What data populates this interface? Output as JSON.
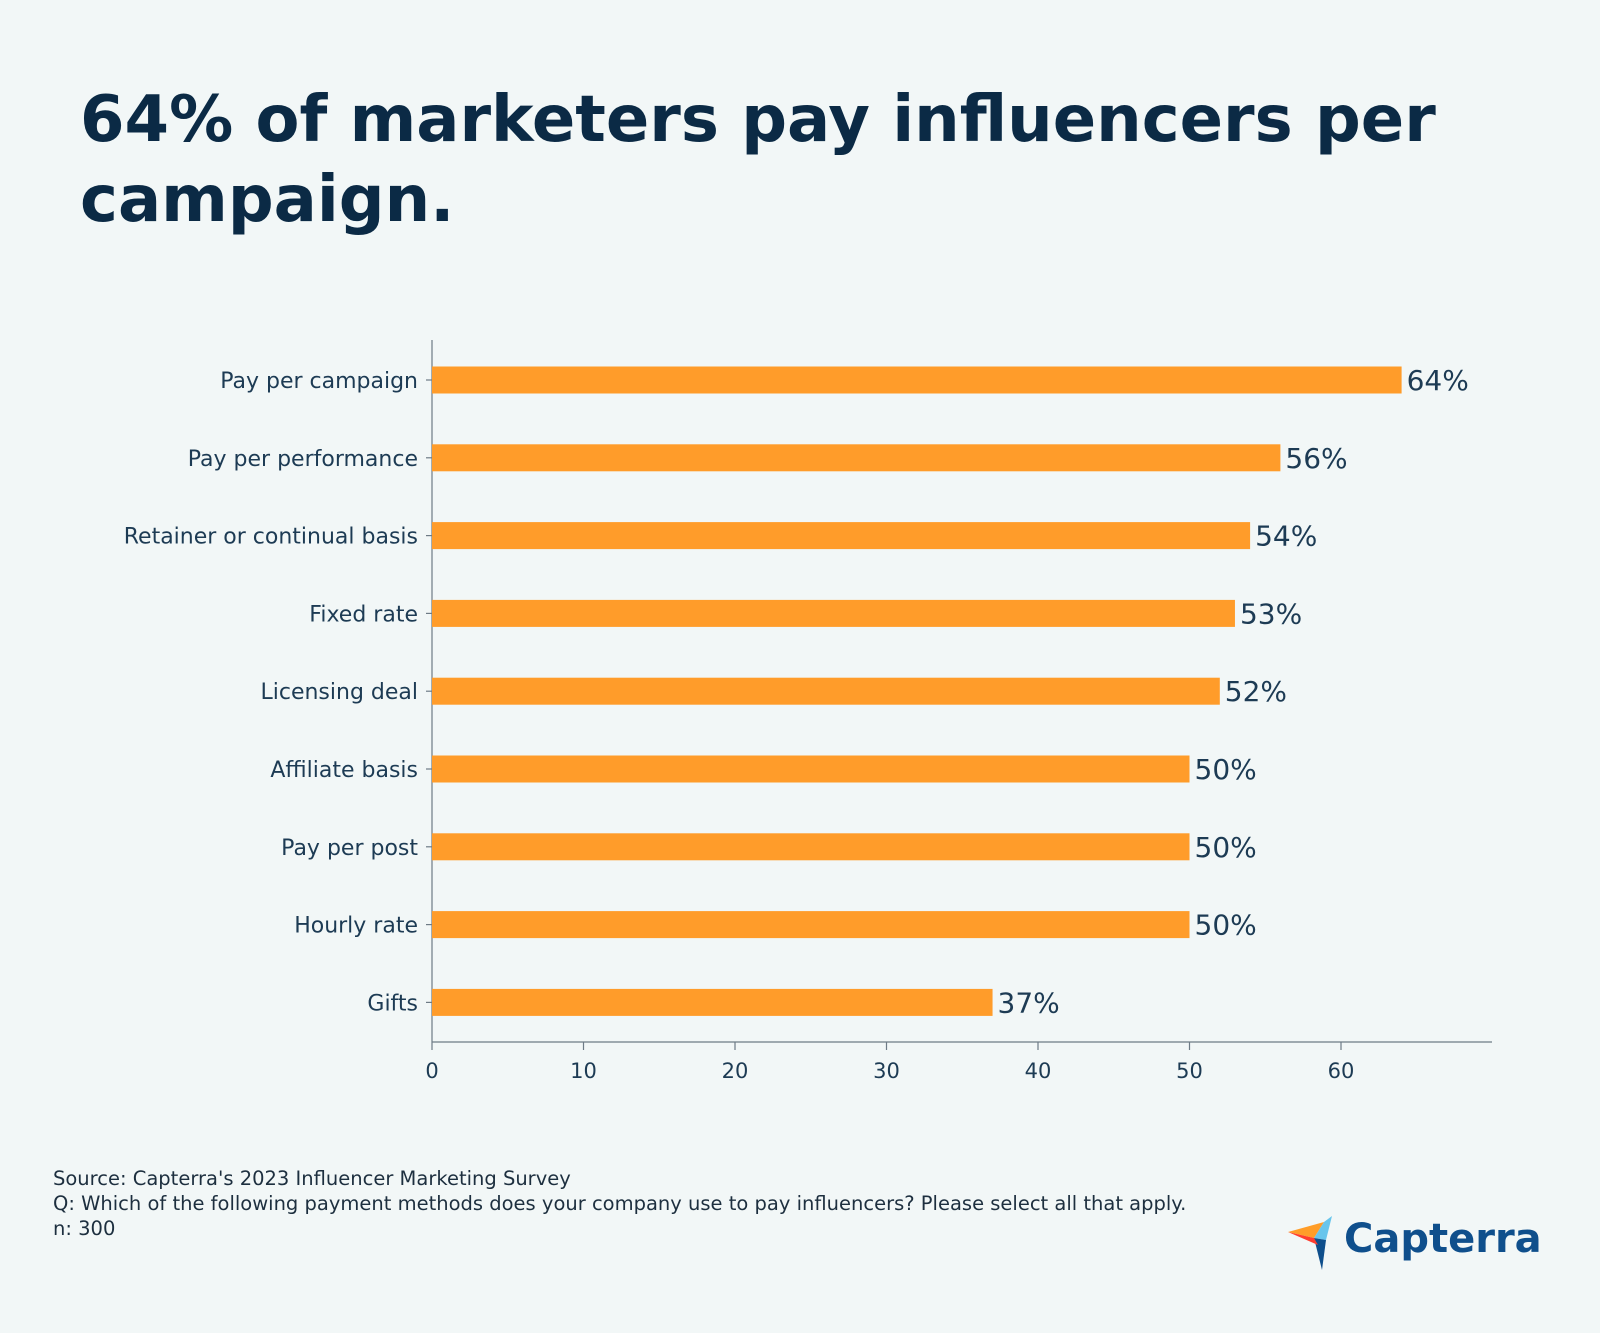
{
  "title": "64% of marketers pay influencers per campaign.",
  "chart_data": {
    "type": "bar",
    "orientation": "horizontal",
    "categories": [
      "Pay per campaign",
      "Pay per performance",
      "Retainer or continual basis",
      "Fixed rate",
      "Licensing deal",
      "Affiliate basis",
      "Pay per post",
      "Hourly rate",
      "Gifts"
    ],
    "values": [
      64,
      56,
      54,
      53,
      52,
      50,
      50,
      50,
      37
    ],
    "data_labels": [
      "64%",
      "56%",
      "54%",
      "53%",
      "52%",
      "50%",
      "50%",
      "50%",
      "37%"
    ],
    "x_ticks": [
      0,
      10,
      20,
      30,
      40,
      50,
      60
    ],
    "xlim": [
      0,
      70
    ],
    "grid": false,
    "bar_color": "#ff9c2a"
  },
  "footnotes": {
    "source": "Source: Capterra's 2023 Influencer Marketing Survey",
    "question": "Q: Which of the following payment methods does your company use to pay influencers? Please select all that apply.",
    "n": "n: 300"
  },
  "brand": {
    "name": "Capterra",
    "logo_icon": "capterra-arrow-icon"
  }
}
